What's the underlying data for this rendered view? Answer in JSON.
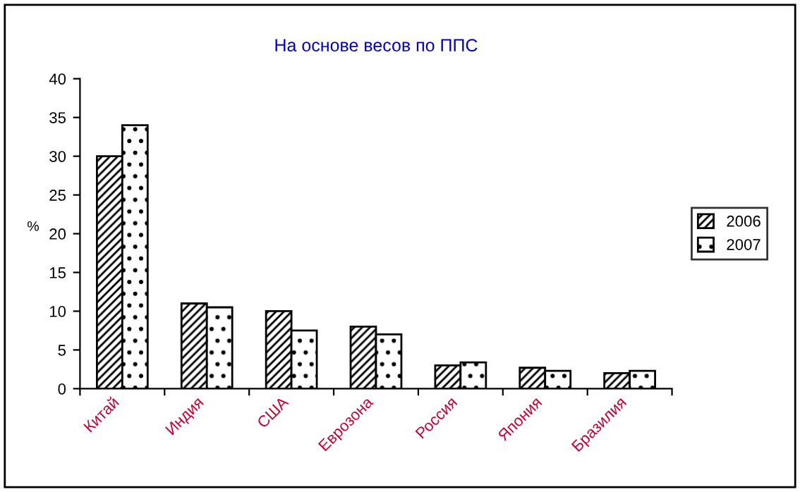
{
  "chart_data": {
    "type": "bar",
    "title": "На основе весов по ППС",
    "ylabel": "%",
    "categories": [
      "Китай",
      "Индия",
      "США",
      "Еврозона",
      "Россия",
      "Япония",
      "Бразилия"
    ],
    "series": [
      {
        "name": "2006",
        "values": [
          30,
          11,
          10,
          8,
          3,
          2.7,
          2
        ]
      },
      {
        "name": "2007",
        "values": [
          34,
          10.5,
          7.5,
          7,
          3.4,
          2.3,
          2.3
        ]
      }
    ],
    "ylim": [
      0,
      40
    ],
    "yticks": [
      0,
      5,
      10,
      15,
      20,
      25,
      30,
      35,
      40
    ],
    "grid": false,
    "legend": "right"
  }
}
